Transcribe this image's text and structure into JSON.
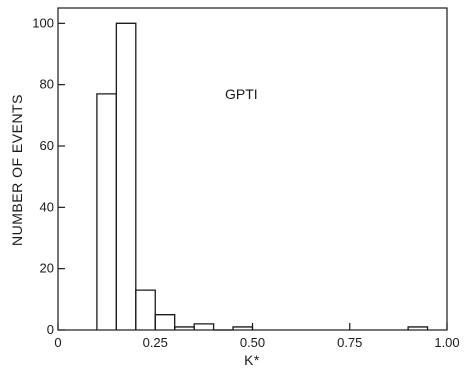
{
  "chart_data": {
    "type": "bar",
    "title": "",
    "xlabel": "K*",
    "ylabel": "NUMBER OF EVENTS",
    "annotation": "GPTI",
    "xlim": [
      0,
      1.0
    ],
    "ylim": [
      0,
      105
    ],
    "x_ticks": [
      "0",
      "0.25",
      "0.50",
      "0.75",
      "1.00"
    ],
    "y_ticks": [
      "0",
      "20",
      "40",
      "60",
      "80",
      "100"
    ],
    "grid": false,
    "bin_width": 0.05,
    "bins": [
      {
        "x0": 0.1,
        "x1": 0.15,
        "count": 77
      },
      {
        "x0": 0.15,
        "x1": 0.2,
        "count": 100
      },
      {
        "x0": 0.2,
        "x1": 0.25,
        "count": 13
      },
      {
        "x0": 0.25,
        "x1": 0.3,
        "count": 5
      },
      {
        "x0": 0.3,
        "x1": 0.35,
        "count": 1
      },
      {
        "x0": 0.35,
        "x1": 0.4,
        "count": 2
      },
      {
        "x0": 0.4,
        "x1": 0.45,
        "count": 0
      },
      {
        "x0": 0.45,
        "x1": 0.5,
        "count": 1
      },
      {
        "x0": 0.9,
        "x1": 0.95,
        "count": 1
      }
    ],
    "colors": {
      "line": "#1a1a1a",
      "background": "#ffffff"
    }
  }
}
